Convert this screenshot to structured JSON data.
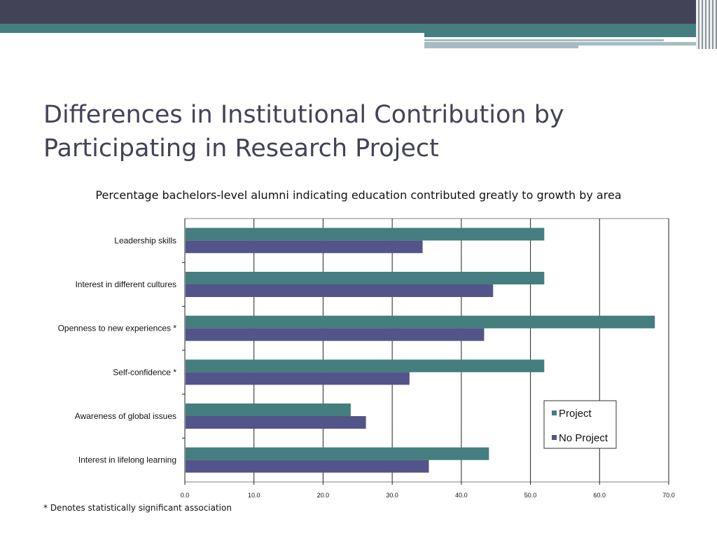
{
  "slide": {
    "title_line1": "Differences in Institutional Contribution by",
    "title_line2": "Participating in Research Project",
    "footnote": "* Denotes statistically significant association"
  },
  "colors": {
    "header_dark": "#434357",
    "header_teal": "#447e7e",
    "header_light": "#a6bcc0",
    "project": "#447e7e",
    "no_project": "#535489"
  },
  "chart_data": {
    "type": "bar",
    "orientation": "horizontal",
    "title": "Percentage bachelors-level alumni indicating education contributed greatly to growth by area",
    "categories": [
      "Leadership skills",
      "Interest in different cultures",
      "Openness to new experiences *",
      "Self-confidence *",
      "Awareness of global issues",
      "Interest in lifelong learning"
    ],
    "series": [
      {
        "name": "Project",
        "color": "#447e7e",
        "values": [
          52.0,
          52.0,
          68.0,
          52.0,
          24.0,
          44.0
        ]
      },
      {
        "name": "No Project",
        "color": "#535489",
        "values": [
          34.4,
          44.6,
          43.3,
          32.5,
          26.2,
          35.3
        ]
      }
    ],
    "xlim": [
      0,
      70
    ],
    "x_ticks": [
      "0.0",
      "10.0",
      "20.0",
      "30.0",
      "40.0",
      "50.0",
      "60.0",
      "70.0"
    ],
    "grid": true,
    "legend": "lower-right"
  }
}
